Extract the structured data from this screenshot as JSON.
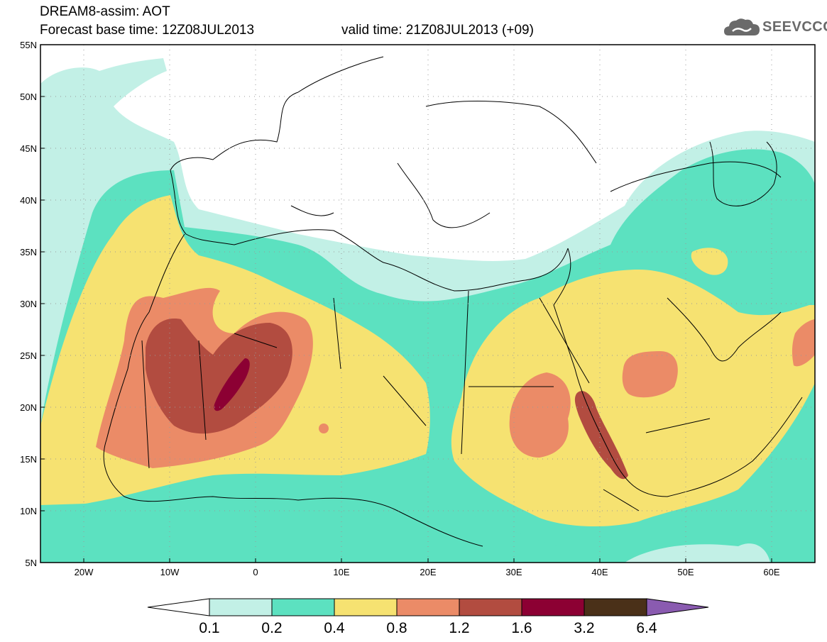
{
  "header": {
    "title_line1": "DREAM8-assim: AOT",
    "base_time": "Forecast base time: 12Z08JUL2013",
    "valid_time": "valid time: 21Z08JUL2013 (+09)",
    "logo_text": "SEEVCCC"
  },
  "map": {
    "lon_range": [
      -25,
      65
    ],
    "lat_range": [
      5,
      55
    ],
    "lat_labels": [
      "55N",
      "50N",
      "45N",
      "40N",
      "35N",
      "30N",
      "25N",
      "20N",
      "15N",
      "10N",
      "5N"
    ],
    "lon_labels": [
      "20W",
      "10W",
      "0",
      "10E",
      "20E",
      "30E",
      "40E",
      "50E",
      "60E"
    ]
  },
  "colorbar": {
    "labels": [
      "0.1",
      "0.2",
      "0.4",
      "0.8",
      "1.2",
      "1.6",
      "3.2",
      "6.4"
    ],
    "colors": [
      "#ffffff",
      "#c2f0e6",
      "#5ce1c0",
      "#f6e271",
      "#eb8b67",
      "#b24c40",
      "#8c0033",
      "#4a3018",
      "#8a5bb0"
    ]
  }
}
